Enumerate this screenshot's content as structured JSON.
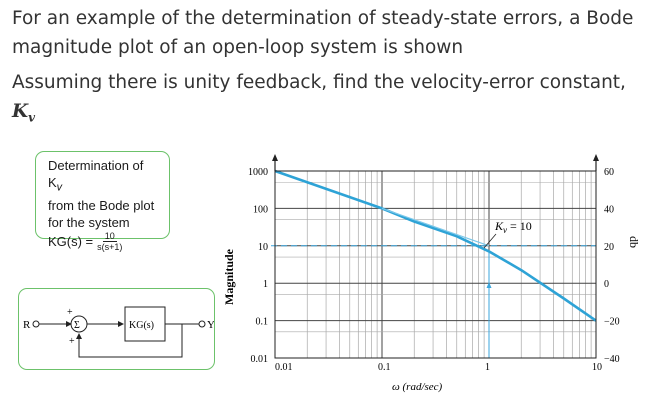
{
  "prompt": {
    "line1": "For an example of the determination of steady-state errors, a Bode",
    "line2": "magnitude plot of an open-loop system is shown",
    "line3": "Assuming there is unity feedback, find the velocity-error constant,",
    "kv_symbol": "K",
    "kv_sub": "v"
  },
  "callout": {
    "line1": "Determination of K",
    "line1_sub": "v",
    "line2": "from the Bode plot",
    "line3": "for the system",
    "tf_lhs": "KG(s) =",
    "tf_num": "10",
    "tf_den": "s(s+1)"
  },
  "block_diagram": {
    "input": "R",
    "sum": "Σ",
    "plus_top": "+",
    "plus_bottom": "+",
    "block": "KG(s)",
    "output": "Y"
  },
  "chart_data": {
    "type": "line",
    "xscale": "log",
    "yscale": "log",
    "xlim": [
      0.01,
      10
    ],
    "ylim": [
      0.01,
      1000
    ],
    "xticks": [
      "0.01",
      "0.1",
      "1",
      "10"
    ],
    "yticks_left": [
      "1000",
      "100",
      "10",
      "1",
      "0.1",
      "0.01"
    ],
    "yticks_right": [
      "60",
      "40",
      "20",
      "0",
      "−20",
      "−40"
    ],
    "xlabel": "ω (rad/sec)",
    "ylabel": "Magnitude",
    "ylabel_right": "db",
    "grid": true,
    "series": [
      {
        "role": "magnitude",
        "color": "#2ea3d6",
        "x": [
          0.01,
          0.1,
          0.2,
          0.5,
          1,
          2,
          5,
          10
        ],
        "y": [
          1000,
          100,
          44.7,
          17.9,
          7.07,
          2.24,
          0.39,
          0.0995
        ]
      },
      {
        "role": "asymptote",
        "color": "#7cc8ea",
        "x": [
          0.1,
          1
        ],
        "y": [
          100,
          10
        ]
      }
    ],
    "annotation": {
      "text": "K",
      "sub": "v",
      "value": "= 10",
      "x": 1,
      "y": 10
    },
    "guide_level": 10,
    "guide_x": 1
  }
}
